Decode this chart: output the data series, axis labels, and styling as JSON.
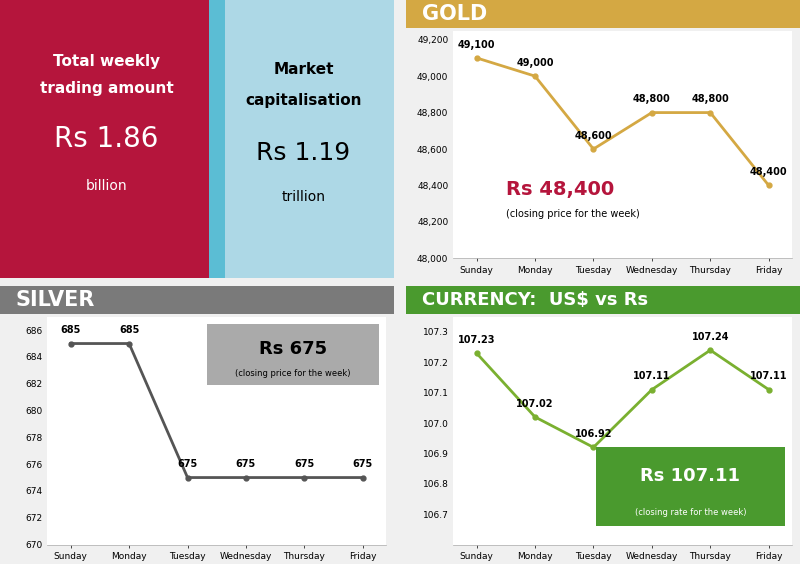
{
  "days": [
    "Sunday",
    "Monday",
    "Tuesday",
    "Wednesday",
    "Thursday",
    "Friday"
  ],
  "gold_values": [
    49100,
    49000,
    48600,
    48800,
    48800,
    48400
  ],
  "silver_values": [
    685,
    685,
    675,
    675,
    675,
    675
  ],
  "currency_values": [
    107.23,
    107.02,
    106.92,
    107.11,
    107.24,
    107.11
  ],
  "top_left_bg": "#b5153c",
  "top_left_bg2": "#add8e6",
  "gold_header_bg": "#d4a843",
  "gold_line_color": "#d4a843",
  "silver_header_bg": "#7a7a7a",
  "silver_line_color": "#555555",
  "currency_header_bg": "#4a9a2e",
  "currency_line_color": "#7ab030",
  "total_weekly_label": "Total weekly\ntrading amount",
  "total_weekly_value": "Rs 1.86",
  "total_weekly_unit": "billion",
  "market_cap_label": "Market\ncapitalisation",
  "market_cap_value": "Rs 1.19",
  "market_cap_unit": "trillion",
  "gold_title": "GOLD",
  "gold_closing_value": "Rs 48,400",
  "gold_closing_label": "(closing price for the week)",
  "silver_title": "SILVER",
  "silver_closing_value": "Rs 675",
  "silver_closing_label": "(closing price for the week)",
  "currency_title": "CURRENCY:  US$ vs Rs",
  "currency_closing_value": "Rs 107.11",
  "currency_closing_label": "(closing rate for the week)",
  "gold_ylim": [
    48000,
    49250
  ],
  "silver_ylim": [
    670,
    687
  ],
  "currency_ylim": [
    106.6,
    107.35
  ],
  "gold_yticks": [
    48000,
    48200,
    48400,
    48600,
    48800,
    49000,
    49200
  ],
  "silver_yticks": [
    670,
    672,
    674,
    676,
    678,
    680,
    682,
    684,
    686
  ],
  "currency_yticks": [
    106.7,
    106.8,
    106.9,
    107.0,
    107.1,
    107.2,
    107.3
  ]
}
